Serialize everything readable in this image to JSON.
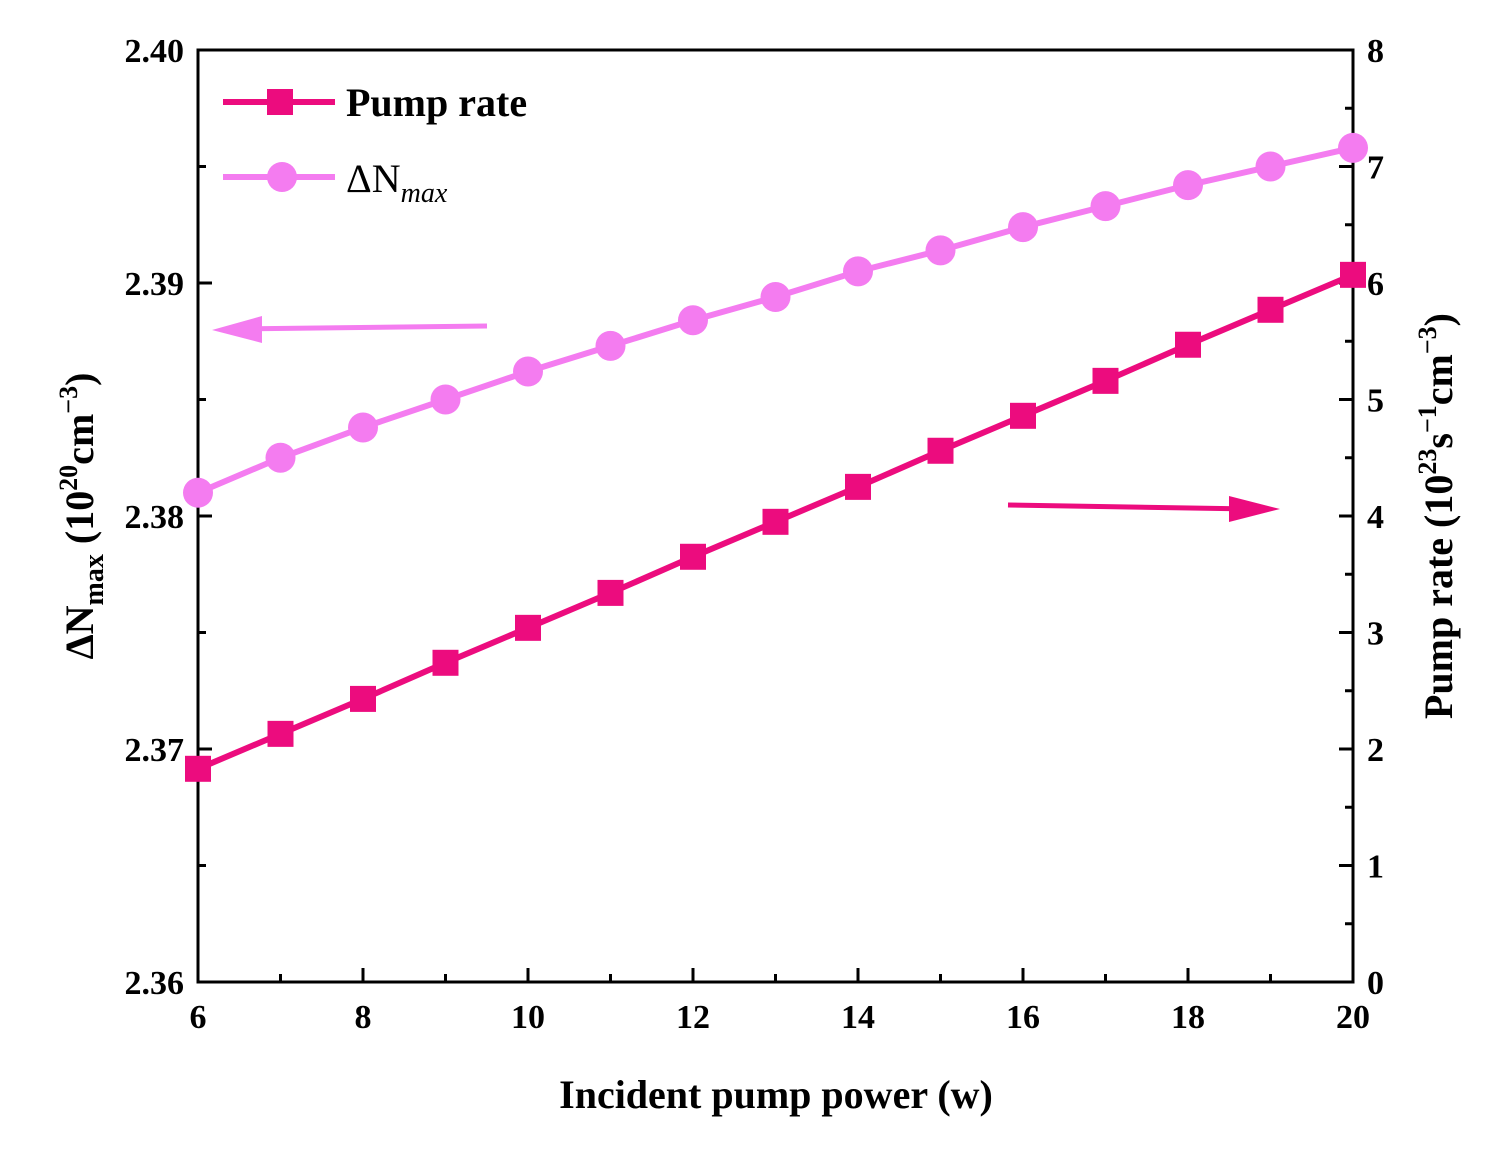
{
  "chart_data": {
    "type": "line",
    "x_label": "Incident pump power (w)",
    "y_left_label_base": "ΔN",
    "y_left_label_sub": "max",
    "y_left_label_unit_open": " (10",
    "y_left_label_unit_exp": "20",
    "y_left_label_unit_mid": "cm",
    "y_left_label_unit_exp2": "−3",
    "y_left_label_unit_close": ")",
    "y_right_label_base": "Pump rate (10",
    "y_right_label_exp": "23",
    "y_right_label_mid": "s",
    "y_right_label_exp2": "−1",
    "y_right_label_mid2": "cm",
    "y_right_label_exp3": "−3",
    "y_right_label_close": ")",
    "x_range": [
      6,
      20
    ],
    "y_left_range": [
      2.36,
      2.4
    ],
    "y_right_range": [
      0,
      8
    ],
    "x_ticks": [
      "6",
      "8",
      "10",
      "12",
      "14",
      "16",
      "18",
      "20"
    ],
    "y_left_ticks": [
      "2.36",
      "2.37",
      "2.38",
      "2.39",
      "2.40"
    ],
    "y_right_ticks": [
      "0",
      "1",
      "2",
      "3",
      "4",
      "5",
      "6",
      "7",
      "8"
    ],
    "x": [
      6,
      7,
      8,
      9,
      10,
      11,
      12,
      13,
      14,
      15,
      16,
      17,
      18,
      19,
      20
    ],
    "series": [
      {
        "name": "Pump rate",
        "axis": "right",
        "marker": "square",
        "color": "#ec0c7e",
        "values": [
          1.83,
          2.13,
          2.43,
          2.74,
          3.04,
          3.34,
          3.65,
          3.95,
          4.25,
          4.56,
          4.86,
          5.16,
          5.47,
          5.77,
          6.07
        ]
      },
      {
        "name": "ΔN",
        "name_sub": "max",
        "axis": "left",
        "marker": "circle",
        "color": "#f47cf0",
        "values": [
          2.381,
          2.3825,
          2.3838,
          2.385,
          2.3862,
          2.3873,
          2.3884,
          2.3894,
          2.3905,
          2.3914,
          2.3924,
          2.3933,
          2.3942,
          2.395,
          2.3958
        ]
      }
    ],
    "annotations": [
      {
        "type": "arrow",
        "points_to": "left axis",
        "color": "#f47cf0"
      },
      {
        "type": "arrow",
        "points_to": "right axis",
        "color": "#ec0c7e"
      }
    ],
    "legend_position": "top-left"
  }
}
